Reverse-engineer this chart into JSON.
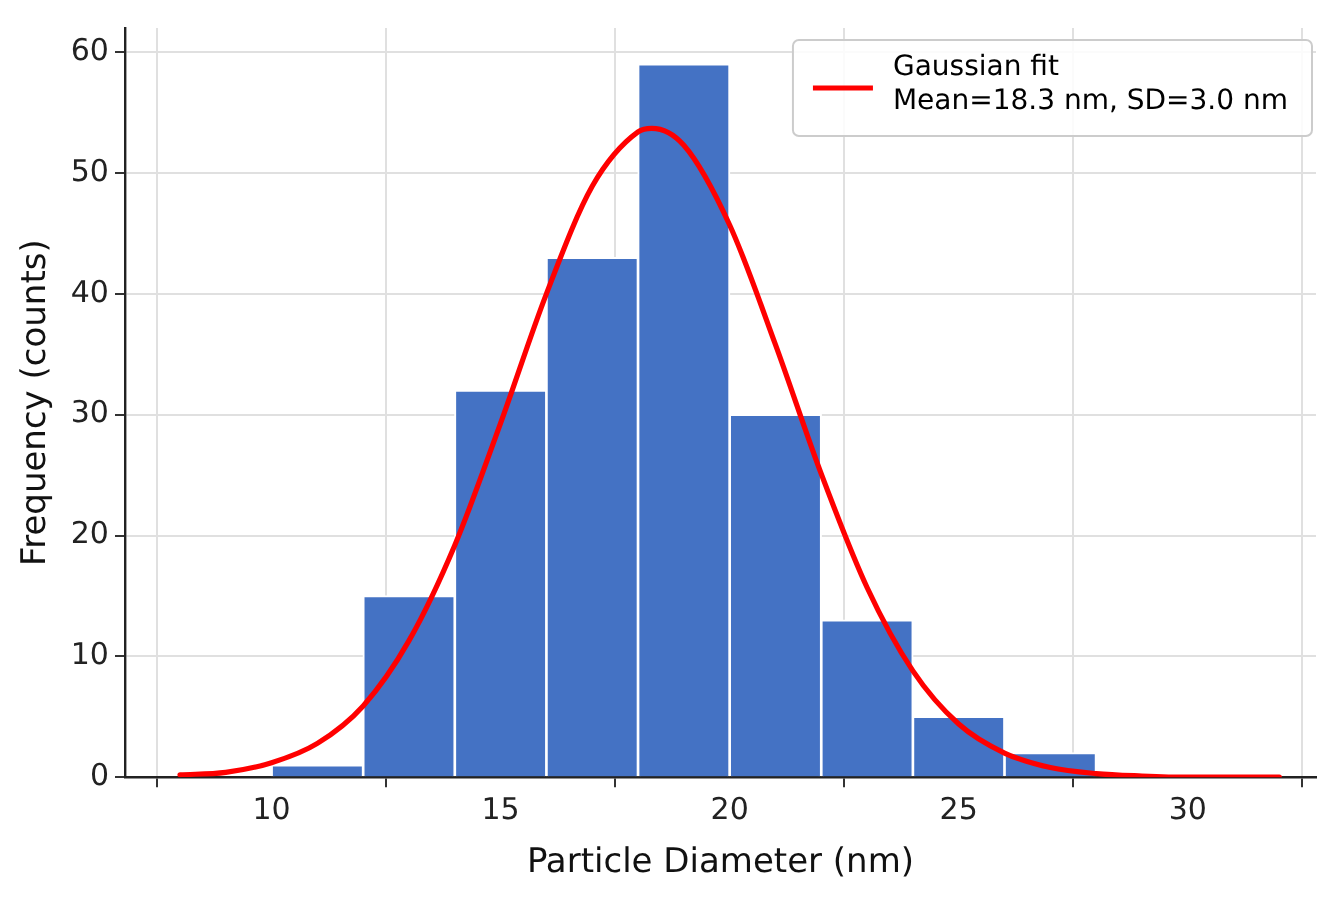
{
  "chart_data": {
    "type": "histogram",
    "xlabel": "Particle Diameter (nm)",
    "ylabel": "Frequency (counts)",
    "bins": [
      10,
      12,
      14,
      16,
      18,
      20,
      22,
      24,
      26,
      28
    ],
    "values": [
      1,
      15,
      32,
      43,
      59,
      30,
      13,
      5,
      2
    ],
    "color": "#4472c4",
    "series": [
      {
        "type": "line",
        "name": "Gaussian fit\nMean=18.3 nm, SD=3.0 nm",
        "color": "#ff0000",
        "x": [
          8,
          9,
          10,
          11,
          12,
          13,
          14,
          15,
          16,
          17,
          18,
          18.3,
          19,
          20,
          21,
          22,
          23,
          24,
          25,
          26,
          27,
          28,
          29,
          30,
          32
        ],
        "values": [
          0.2,
          0.4,
          1.2,
          2.8,
          5.9,
          11.3,
          19.2,
          29.3,
          40,
          48.9,
          53.4,
          53.7,
          52.3,
          45.7,
          35.8,
          25.1,
          15.7,
          8.8,
          4.4,
          2,
          0.8,
          0.3,
          0.1,
          0,
          0
        ]
      }
    ],
    "xlim": [
      6.8,
      32.8
    ],
    "xticks": [
      10,
      15,
      20,
      25,
      30
    ],
    "ylim": [
      0,
      62
    ],
    "yticks": [
      0,
      10,
      20,
      30,
      40,
      50,
      60
    ],
    "grid": true,
    "legend": "top right",
    "marker": "none",
    "line_style": "solid"
  }
}
